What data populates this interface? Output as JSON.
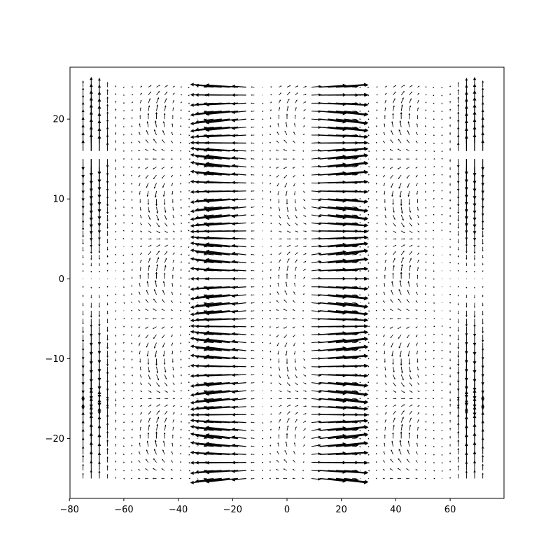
{
  "chart_data": {
    "type": "quiver",
    "title": "",
    "xlabel": "",
    "ylabel": "",
    "xlim": [
      -79.8,
      79.8
    ],
    "ylim": [
      -27.5,
      26.5
    ],
    "x_ticks": [
      -80,
      -60,
      -40,
      -20,
      0,
      20,
      40,
      60
    ],
    "y_ticks": [
      -20,
      -10,
      0,
      10,
      20
    ],
    "x_tick_labels": [
      "−80",
      "−60",
      "−40",
      "−20",
      "0",
      "20",
      "40",
      "60"
    ],
    "y_tick_labels": [
      "−20",
      "−10",
      "0",
      "10",
      "20"
    ],
    "grid": false,
    "grid_x": {
      "start": -75,
      "stop": 72,
      "step": 3
    },
    "grid_y": {
      "start": -25,
      "stop": 24,
      "step": 1
    },
    "arrow_color": "#000000",
    "field_description_regions": [
      {
        "x_range": [
          -28,
          -13
        ],
        "direction": "left",
        "magnitude": "large"
      },
      {
        "x_range": [
          9,
          22
        ],
        "direction": "right",
        "magnitude": "large"
      },
      {
        "x_range": [
          -75,
          -66
        ],
        "direction": "vertical",
        "magnitude": "medium"
      },
      {
        "x_range": [
          63,
          72
        ],
        "direction": "vertical",
        "magnitude": "medium"
      }
    ]
  }
}
